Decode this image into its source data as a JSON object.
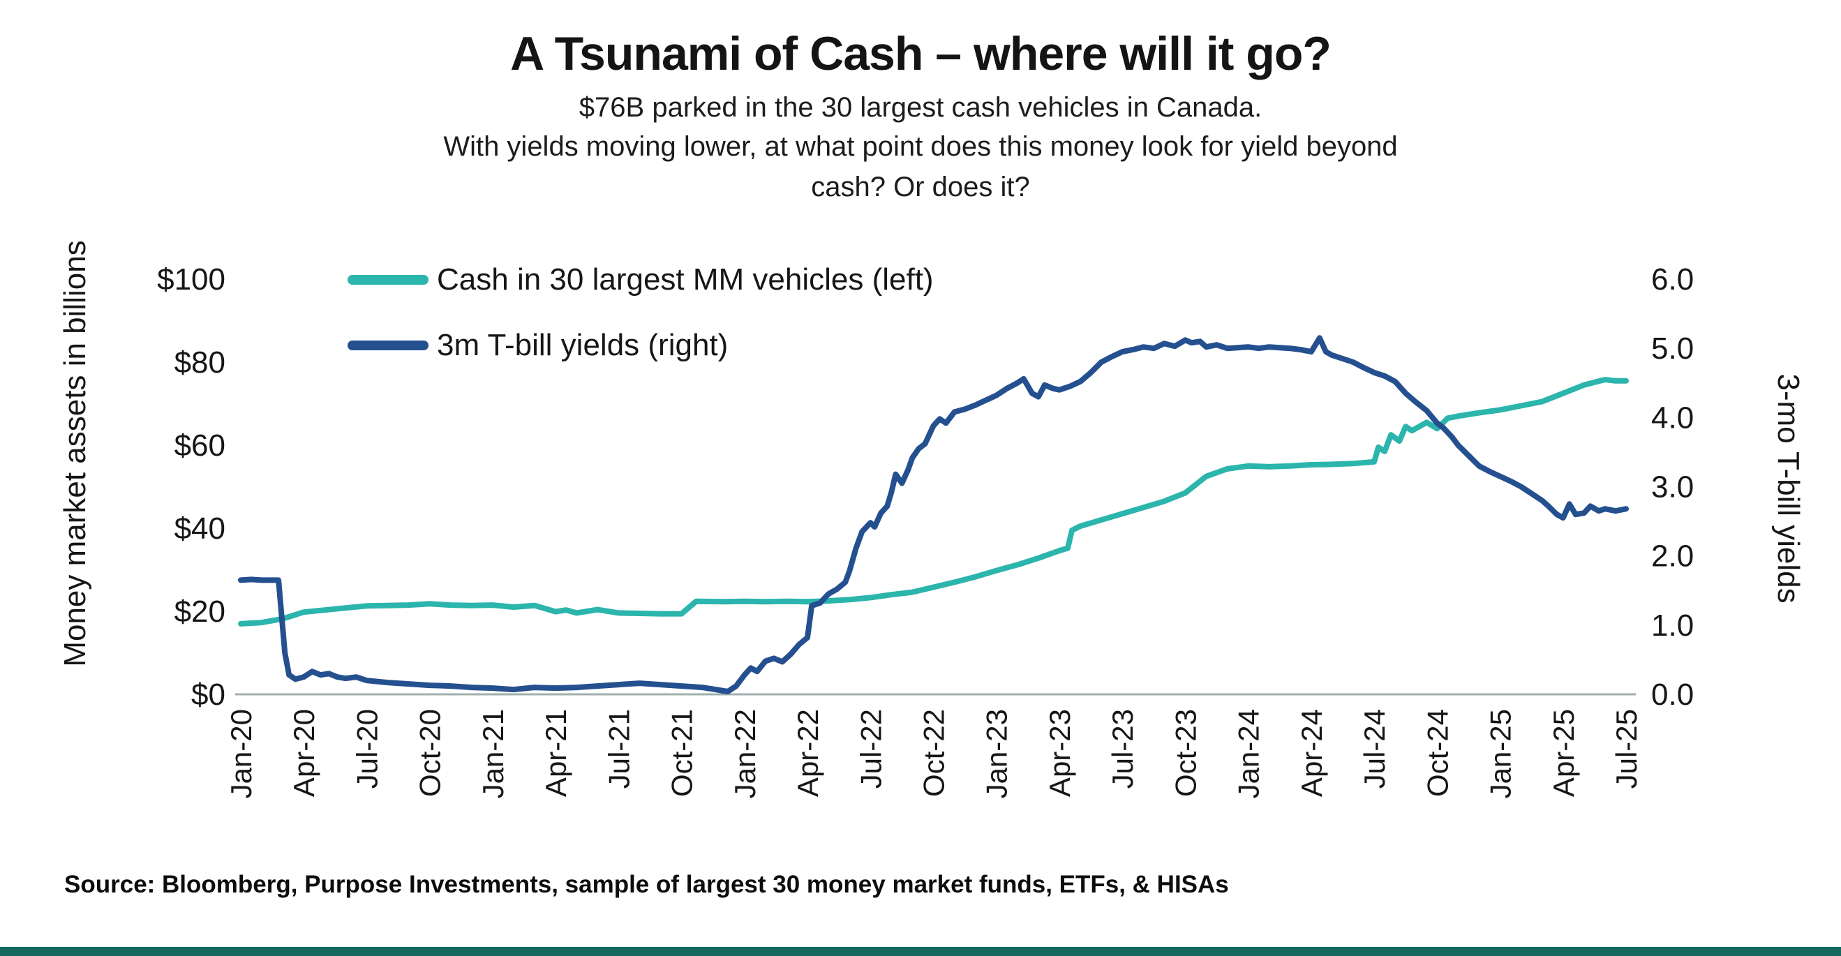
{
  "header": {
    "title": "A Tsunami of Cash – where will it go?",
    "subtitle1": "$76B parked in the 30 largest cash vehicles in Canada.",
    "subtitle2_line1": "With yields moving lower, at what point does this money look for yield beyond",
    "subtitle2_line2": "cash? Or does it?"
  },
  "source": "Source: Bloomberg, Purpose Investments, sample of largest 30 money market funds, ETFs, & HISAs",
  "accent_bar_color": "#17685e",
  "chart_data": {
    "type": "line",
    "title": "A Tsunami of Cash – where will it go?",
    "x_unit": "months since Jan-2020",
    "x_max": 66,
    "grid": false,
    "legend_position": "top-left-inside",
    "x_tick_labels": [
      "Jan-20",
      "Apr-20",
      "Jul-20",
      "Oct-20",
      "Jan-21",
      "Apr-21",
      "Jul-21",
      "Oct-21",
      "Jan-22",
      "Apr-22",
      "Jul-22",
      "Oct-22",
      "Jan-23",
      "Apr-23",
      "Jul-23",
      "Oct-23",
      "Jan-24",
      "Apr-24",
      "Jul-24",
      "Oct-24",
      "Jan-25",
      "Apr-25",
      "Jul-25"
    ],
    "x_tick_positions": [
      0,
      3,
      6,
      9,
      12,
      15,
      18,
      21,
      24,
      27,
      30,
      33,
      36,
      39,
      42,
      45,
      48,
      51,
      54,
      57,
      60,
      63,
      66
    ],
    "left_axis": {
      "title": "Money market assets in billions",
      "ticks": [
        "$0",
        "$20",
        "$40",
        "$60",
        "$80",
        "$100"
      ],
      "tick_values": [
        0,
        20,
        40,
        60,
        80,
        100
      ],
      "min": 0,
      "max": 100
    },
    "right_axis": {
      "title": "3-mo T-bill yields",
      "ticks": [
        "0.0",
        "1.0",
        "2.0",
        "3.0",
        "4.0",
        "5.0",
        "6.0"
      ],
      "tick_values": [
        0,
        1,
        2,
        3,
        4,
        5,
        6
      ],
      "min": 0,
      "max": 6
    },
    "series": [
      {
        "name": "Cash in 30 largest MM vehicles (left)",
        "axis": "left",
        "color": "#2BB5AC",
        "points": [
          [
            0,
            17
          ],
          [
            1,
            17.3
          ],
          [
            2,
            18.2
          ],
          [
            3,
            19.8
          ],
          [
            4,
            20.3
          ],
          [
            5,
            20.8
          ],
          [
            6,
            21.3
          ],
          [
            7,
            21.4
          ],
          [
            8,
            21.5
          ],
          [
            9,
            21.8
          ],
          [
            10,
            21.5
          ],
          [
            11,
            21.4
          ],
          [
            12,
            21.5
          ],
          [
            13,
            21.0
          ],
          [
            14,
            21.4
          ],
          [
            15,
            19.9
          ],
          [
            15.5,
            20.3
          ],
          [
            16,
            19.6
          ],
          [
            17,
            20.4
          ],
          [
            18,
            19.6
          ],
          [
            19,
            19.5
          ],
          [
            20,
            19.4
          ],
          [
            21,
            19.4
          ],
          [
            21.7,
            22.4
          ],
          [
            23,
            22.3
          ],
          [
            24,
            22.4
          ],
          [
            25,
            22.3
          ],
          [
            26,
            22.4
          ],
          [
            27,
            22.3
          ],
          [
            28,
            22.5
          ],
          [
            29,
            22.8
          ],
          [
            30,
            23.3
          ],
          [
            31,
            24.0
          ],
          [
            32,
            24.6
          ],
          [
            33,
            25.8
          ],
          [
            34,
            27.0
          ],
          [
            35,
            28.3
          ],
          [
            36,
            29.8
          ],
          [
            37,
            31.2
          ],
          [
            38,
            32.8
          ],
          [
            39,
            34.6
          ],
          [
            39.4,
            35.2
          ],
          [
            39.6,
            39.5
          ],
          [
            40,
            40.5
          ],
          [
            41,
            42.0
          ],
          [
            42,
            43.5
          ],
          [
            43,
            45.0
          ],
          [
            44,
            46.5
          ],
          [
            45,
            48.5
          ],
          [
            45.5,
            50.5
          ],
          [
            46,
            52.5
          ],
          [
            47,
            54.3
          ],
          [
            48,
            55.0
          ],
          [
            49,
            54.8
          ],
          [
            50,
            55.0
          ],
          [
            51,
            55.3
          ],
          [
            52,
            55.4
          ],
          [
            53,
            55.6
          ],
          [
            54,
            56.0
          ],
          [
            54.2,
            59.5
          ],
          [
            54.5,
            58.5
          ],
          [
            54.8,
            62.5
          ],
          [
            55.2,
            61.0
          ],
          [
            55.5,
            64.5
          ],
          [
            55.8,
            63.5
          ],
          [
            56.5,
            65.5
          ],
          [
            57,
            64.0
          ],
          [
            57.5,
            66.5
          ],
          [
            58,
            67.0
          ],
          [
            59,
            67.8
          ],
          [
            60,
            68.5
          ],
          [
            61,
            69.5
          ],
          [
            62,
            70.5
          ],
          [
            63,
            72.5
          ],
          [
            64,
            74.5
          ],
          [
            65,
            75.8
          ],
          [
            65.5,
            75.5
          ],
          [
            66,
            75.5
          ]
        ]
      },
      {
        "name": "3m T-bill yields (right)",
        "axis": "right",
        "color": "#25508F",
        "points": [
          [
            0,
            1.65
          ],
          [
            0.5,
            1.66
          ],
          [
            1,
            1.65
          ],
          [
            1.8,
            1.65
          ],
          [
            2.1,
            0.6
          ],
          [
            2.3,
            0.28
          ],
          [
            2.6,
            0.22
          ],
          [
            3,
            0.25
          ],
          [
            3.4,
            0.33
          ],
          [
            3.8,
            0.28
          ],
          [
            4.2,
            0.3
          ],
          [
            4.6,
            0.25
          ],
          [
            5,
            0.23
          ],
          [
            5.5,
            0.25
          ],
          [
            6,
            0.2
          ],
          [
            7,
            0.17
          ],
          [
            8,
            0.15
          ],
          [
            9,
            0.13
          ],
          [
            10,
            0.12
          ],
          [
            11,
            0.1
          ],
          [
            12,
            0.09
          ],
          [
            13,
            0.07
          ],
          [
            14,
            0.1
          ],
          [
            15,
            0.09
          ],
          [
            16,
            0.1
          ],
          [
            17,
            0.12
          ],
          [
            18,
            0.14
          ],
          [
            19,
            0.16
          ],
          [
            20,
            0.14
          ],
          [
            21,
            0.12
          ],
          [
            22,
            0.1
          ],
          [
            22.8,
            0.06
          ],
          [
            23.2,
            0.04
          ],
          [
            23.6,
            0.12
          ],
          [
            24,
            0.28
          ],
          [
            24.3,
            0.38
          ],
          [
            24.6,
            0.33
          ],
          [
            25,
            0.48
          ],
          [
            25.4,
            0.52
          ],
          [
            25.8,
            0.47
          ],
          [
            26.2,
            0.58
          ],
          [
            26.6,
            0.72
          ],
          [
            27,
            0.82
          ],
          [
            27.2,
            1.28
          ],
          [
            27.6,
            1.32
          ],
          [
            28,
            1.45
          ],
          [
            28.4,
            1.52
          ],
          [
            28.8,
            1.62
          ],
          [
            29,
            1.78
          ],
          [
            29.3,
            2.1
          ],
          [
            29.6,
            2.35
          ],
          [
            30,
            2.48
          ],
          [
            30.2,
            2.42
          ],
          [
            30.5,
            2.62
          ],
          [
            30.8,
            2.72
          ],
          [
            31,
            2.92
          ],
          [
            31.2,
            3.18
          ],
          [
            31.5,
            3.05
          ],
          [
            31.8,
            3.25
          ],
          [
            32,
            3.42
          ],
          [
            32.3,
            3.55
          ],
          [
            32.6,
            3.62
          ],
          [
            33,
            3.88
          ],
          [
            33.3,
            3.98
          ],
          [
            33.6,
            3.92
          ],
          [
            34,
            4.08
          ],
          [
            34.5,
            4.12
          ],
          [
            35,
            4.18
          ],
          [
            35.5,
            4.25
          ],
          [
            36,
            4.32
          ],
          [
            36.5,
            4.42
          ],
          [
            37,
            4.5
          ],
          [
            37.3,
            4.56
          ],
          [
            37.7,
            4.35
          ],
          [
            38,
            4.3
          ],
          [
            38.3,
            4.47
          ],
          [
            38.7,
            4.42
          ],
          [
            39,
            4.4
          ],
          [
            39.5,
            4.45
          ],
          [
            40,
            4.52
          ],
          [
            40.5,
            4.65
          ],
          [
            41,
            4.8
          ],
          [
            41.5,
            4.88
          ],
          [
            42,
            4.95
          ],
          [
            42.5,
            4.98
          ],
          [
            43,
            5.02
          ],
          [
            43.5,
            5.0
          ],
          [
            44,
            5.07
          ],
          [
            44.5,
            5.03
          ],
          [
            45,
            5.12
          ],
          [
            45.3,
            5.08
          ],
          [
            45.7,
            5.1
          ],
          [
            46,
            5.02
          ],
          [
            46.5,
            5.05
          ],
          [
            47,
            5.0
          ],
          [
            48,
            5.02
          ],
          [
            48.5,
            5.0
          ],
          [
            49,
            5.02
          ],
          [
            50,
            5.0
          ],
          [
            50.5,
            4.98
          ],
          [
            51,
            4.95
          ],
          [
            51.4,
            5.15
          ],
          [
            51.7,
            4.95
          ],
          [
            52,
            4.9
          ],
          [
            52.5,
            4.85
          ],
          [
            53,
            4.8
          ],
          [
            53.5,
            4.72
          ],
          [
            54,
            4.65
          ],
          [
            54.5,
            4.6
          ],
          [
            55,
            4.52
          ],
          [
            55.5,
            4.35
          ],
          [
            56,
            4.22
          ],
          [
            56.5,
            4.1
          ],
          [
            57,
            3.92
          ],
          [
            57.3,
            3.85
          ],
          [
            57.7,
            3.72
          ],
          [
            58,
            3.6
          ],
          [
            58.5,
            3.45
          ],
          [
            59,
            3.3
          ],
          [
            59.5,
            3.22
          ],
          [
            60,
            3.15
          ],
          [
            60.5,
            3.08
          ],
          [
            61,
            3.0
          ],
          [
            61.5,
            2.9
          ],
          [
            62,
            2.8
          ],
          [
            62.3,
            2.72
          ],
          [
            62.7,
            2.6
          ],
          [
            63,
            2.55
          ],
          [
            63.3,
            2.75
          ],
          [
            63.6,
            2.6
          ],
          [
            64,
            2.62
          ],
          [
            64.3,
            2.72
          ],
          [
            64.7,
            2.65
          ],
          [
            65,
            2.68
          ],
          [
            65.5,
            2.65
          ],
          [
            66,
            2.68
          ]
        ]
      }
    ]
  }
}
